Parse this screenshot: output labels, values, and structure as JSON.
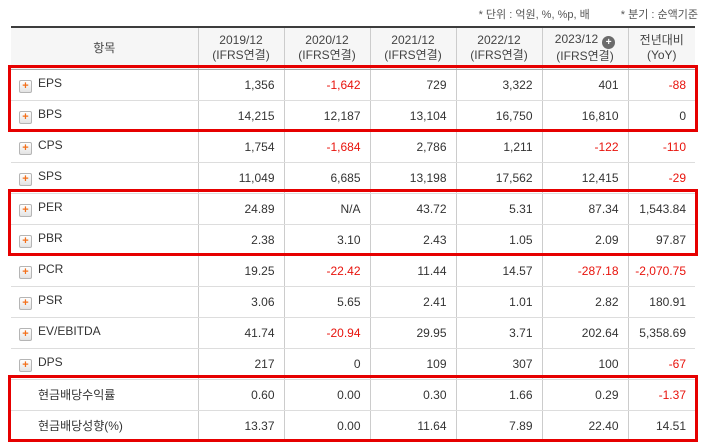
{
  "notes": {
    "unit": "* 단위 : 억원, %, %p, 배",
    "basis": "* 분기 : 순액기준"
  },
  "table": {
    "item_header": "항목",
    "columns": [
      {
        "period": "2019/12",
        "basis": "(IFRS연결)",
        "has_plus_icon": false
      },
      {
        "period": "2020/12",
        "basis": "(IFRS연결)",
        "has_plus_icon": false
      },
      {
        "period": "2021/12",
        "basis": "(IFRS연결)",
        "has_plus_icon": false
      },
      {
        "period": "2022/12",
        "basis": "(IFRS연결)",
        "has_plus_icon": false
      },
      {
        "period": "2023/12",
        "basis": "(IFRS연결)",
        "has_plus_icon": true
      },
      {
        "period": "전년대비",
        "basis": "(YoY)",
        "has_plus_icon": false
      }
    ],
    "rows": [
      {
        "label": "EPS",
        "has_icon": true,
        "section_start": false,
        "values": [
          "1,356",
          "-1,642",
          "729",
          "3,322",
          "401",
          "-88"
        ]
      },
      {
        "label": "BPS",
        "has_icon": true,
        "section_start": false,
        "values": [
          "14,215",
          "12,187",
          "13,104",
          "16,750",
          "16,810",
          "0"
        ]
      },
      {
        "label": "CPS",
        "has_icon": true,
        "section_start": false,
        "values": [
          "1,754",
          "-1,684",
          "2,786",
          "1,211",
          "-122",
          "-110"
        ]
      },
      {
        "label": "SPS",
        "has_icon": true,
        "section_start": false,
        "values": [
          "11,049",
          "6,685",
          "13,198",
          "17,562",
          "12,415",
          "-29"
        ]
      },
      {
        "label": "PER",
        "has_icon": true,
        "section_start": false,
        "values": [
          "24.89",
          "N/A",
          "43.72",
          "5.31",
          "87.34",
          "1,543.84"
        ]
      },
      {
        "label": "PBR",
        "has_icon": true,
        "section_start": false,
        "values": [
          "2.38",
          "3.10",
          "2.43",
          "1.05",
          "2.09",
          "97.87"
        ]
      },
      {
        "label": "PCR",
        "has_icon": true,
        "section_start": false,
        "values": [
          "19.25",
          "-22.42",
          "11.44",
          "14.57",
          "-287.18",
          "-2,070.75"
        ]
      },
      {
        "label": "PSR",
        "has_icon": true,
        "section_start": false,
        "values": [
          "3.06",
          "5.65",
          "2.41",
          "1.01",
          "2.82",
          "180.91"
        ]
      },
      {
        "label": "EV/EBITDA",
        "has_icon": true,
        "section_start": false,
        "values": [
          "41.74",
          "-20.94",
          "29.95",
          "3.71",
          "202.64",
          "5,358.69"
        ]
      },
      {
        "label": "DPS",
        "has_icon": true,
        "section_start": false,
        "values": [
          "217",
          "0",
          "109",
          "307",
          "100",
          "-67"
        ]
      },
      {
        "label": "현금배당수익률",
        "has_icon": false,
        "section_start": true,
        "values": [
          "0.60",
          "0.00",
          "0.30",
          "1.66",
          "0.29",
          "-1.37"
        ]
      },
      {
        "label": "현금배당성향(%)",
        "has_icon": false,
        "section_start": false,
        "values": [
          "13.37",
          "0.00",
          "11.64",
          "7.89",
          "22.40",
          "14.51"
        ]
      }
    ]
  },
  "icons": {
    "row_expand_plus": "+",
    "header_expand_plus": "+"
  },
  "colors": {
    "negative_value_red": "#e8130c",
    "highlight_box_red": "#e60000",
    "row_icon_orange": "#f3701b",
    "header_background": "#f6f6f6",
    "table_top_border": "#3d3d3d"
  },
  "highlights": [
    {
      "name": "eps-bps-rows"
    },
    {
      "name": "per-pbr-rows"
    },
    {
      "name": "dividend-rows"
    }
  ]
}
